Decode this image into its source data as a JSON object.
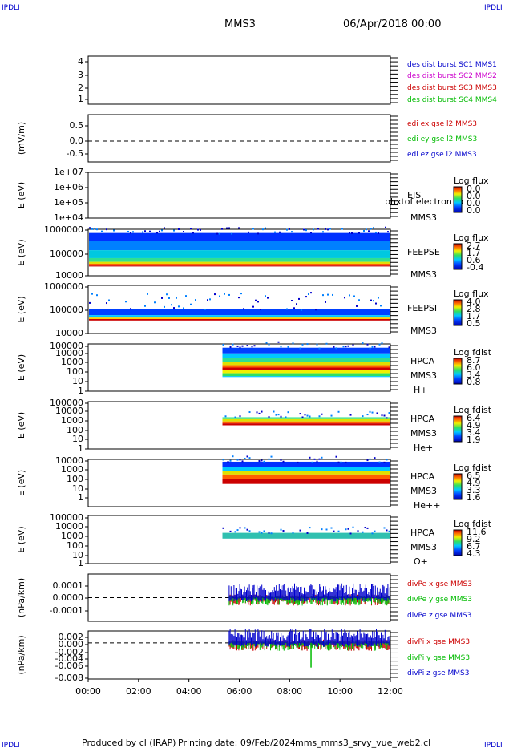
{
  "header": {
    "corner_left": "IPDLI",
    "corner_right": "IPDLI",
    "spacecraft": "MMS3",
    "datetime": "06/Apr/2018 00:00"
  },
  "footer": {
    "produced_by": "Produced by cl (IRAP)",
    "printing_date": "Printing date: 09/Feb/2024",
    "file": "mms_mms3_srvy_vue_web2.cl",
    "corner_left": "IPDLI",
    "corner_right": "IPDLI"
  },
  "time_axis": {
    "ticks": [
      "00:00",
      "02:00",
      "04:00",
      "06:00",
      "08:00",
      "10:00",
      "12:00"
    ],
    "range_hours": [
      0,
      12
    ]
  },
  "colors": {
    "blue": "#0000cc",
    "magenta": "#cc00cc",
    "red": "#cc0000",
    "green": "#00bb00",
    "axis": "#000000"
  },
  "chart_data": [
    {
      "type": "line",
      "id": "burst",
      "ylabel": "",
      "yticks": [
        "1",
        "2",
        "3",
        "4"
      ],
      "ylim": [
        0.7,
        4.3
      ],
      "legend": [
        "des dist burst SC1 MMS1",
        "des dist burst SC2 MMS2",
        "des dist burst SC3 MMS3",
        "des dist burst SC4 MMS4"
      ],
      "legend_colors": [
        "blue",
        "magenta",
        "red",
        "green"
      ],
      "series": []
    },
    {
      "type": "line",
      "id": "edi",
      "ylabel": "(mV/m)",
      "yticks": [
        "0.5",
        "0.0",
        "-0.5"
      ],
      "ylim": [
        -0.75,
        0.95
      ],
      "zero_line": true,
      "legend": [
        "edi ex gse l2 MMS3",
        "edi ey gse l2 MMS3",
        "edi ez gse l2 MMS3"
      ],
      "legend_colors": [
        "red",
        "green",
        "blue"
      ],
      "series": []
    },
    {
      "type": "heatmap",
      "id": "eis",
      "ylabel": "E (eV)",
      "yticks": [
        "1e+07",
        "1e+06",
        "1e+05",
        "1e+04"
      ],
      "scale": "log",
      "labels": [
        "EIS",
        "MMS3"
      ],
      "overlay_text": "phxtof electron to",
      "colorbar_title": "Log flux",
      "colorbar_ticks": [
        "0.0",
        "0.0",
        "0.0",
        "0.0"
      ],
      "data_hours": []
    },
    {
      "type": "heatmap",
      "id": "feeps_e",
      "ylabel": "E (eV)",
      "yticks": [
        "1000000",
        "100000",
        "10000"
      ],
      "scale": "log",
      "labels": [
        "FEEPSE",
        "MMS3"
      ],
      "colorbar_title": "Log flux",
      "colorbar_ticks": [
        "2.7",
        "1.7",
        "0.6",
        "-0.4"
      ],
      "data_hours": [
        0,
        12
      ]
    },
    {
      "type": "heatmap",
      "id": "feeps_i",
      "ylabel": "E (eV)",
      "yticks": [
        "1000000",
        "100000",
        "10000"
      ],
      "scale": "log",
      "labels": [
        "FEEPSI",
        "MMS3"
      ],
      "colorbar_title": "Log flux",
      "colorbar_ticks": [
        "4.0",
        "2.8",
        "1.7",
        "0.5"
      ],
      "data_hours": [
        0,
        12
      ]
    },
    {
      "type": "heatmap",
      "id": "hpca_h",
      "ylabel": "E (eV)",
      "yticks": [
        "100000",
        "10000",
        "1000",
        "100",
        "10",
        "1"
      ],
      "scale": "log",
      "labels": [
        "HPCA",
        "MMS3",
        "H+"
      ],
      "colorbar_title": "Log fdist",
      "colorbar_ticks": [
        "8.7",
        "6.0",
        "3.4",
        "0.8"
      ],
      "data_hours": [
        5.3,
        12
      ]
    },
    {
      "type": "heatmap",
      "id": "hpca_he",
      "ylabel": "E (eV)",
      "yticks": [
        "100000",
        "10000",
        "1000",
        "100",
        "10",
        "1"
      ],
      "scale": "log",
      "labels": [
        "HPCA",
        "MMS3",
        "He+"
      ],
      "colorbar_title": "Log fdist",
      "colorbar_ticks": [
        "6.4",
        "4.9",
        "3.4",
        "1.9"
      ],
      "data_hours": [
        5.3,
        12
      ]
    },
    {
      "type": "heatmap",
      "id": "hpca_hepp",
      "ylabel": "E (eV)",
      "yticks": [
        "10000",
        "1000",
        "100",
        "10",
        "1"
      ],
      "scale": "log",
      "labels": [
        "HPCA",
        "MMS3",
        "He++"
      ],
      "colorbar_title": "Log fdist",
      "colorbar_ticks": [
        "6.5",
        "4.9",
        "3.3",
        "1.6"
      ],
      "data_hours": [
        5.3,
        12
      ]
    },
    {
      "type": "heatmap",
      "id": "hpca_o",
      "ylabel": "E (eV)",
      "yticks": [
        "100000",
        "10000",
        "1000",
        "100",
        "10",
        "1"
      ],
      "scale": "log",
      "labels": [
        "HPCA",
        "MMS3",
        "O+"
      ],
      "colorbar_title": "Log fdist",
      "colorbar_ticks": [
        "11.6",
        "9.2",
        "6.7",
        "4.3"
      ],
      "data_hours": [
        5.3,
        12
      ]
    },
    {
      "type": "line",
      "id": "divpe",
      "ylabel": "(nPa/km)",
      "yticks": [
        "0.0001",
        "0.0000",
        "-0.0001"
      ],
      "ylim": [
        -0.00017,
        0.00017
      ],
      "zero_line": true,
      "legend": [
        "divPe x gse MMS3",
        "divPe y gse MMS3",
        "divPe z gse MMS3"
      ],
      "legend_colors": [
        "red",
        "green",
        "blue"
      ],
      "data_hours": [
        5.6,
        12
      ]
    },
    {
      "type": "line",
      "id": "divpi",
      "ylabel": "(nPa/km)",
      "yticks": [
        "0.002",
        "0.000",
        "-0.002",
        "-0.004",
        "-0.006",
        "-0.008"
      ],
      "ylim": [
        -0.0085,
        0.0028
      ],
      "zero_line": true,
      "legend": [
        "divPi x gse MMS3",
        "divPi y gse MMS3",
        "divPi z gse MMS3"
      ],
      "legend_colors": [
        "red",
        "green",
        "blue"
      ],
      "data_hours": [
        5.6,
        12
      ],
      "spike": {
        "hour": 8.85,
        "min": -0.0058
      }
    }
  ]
}
